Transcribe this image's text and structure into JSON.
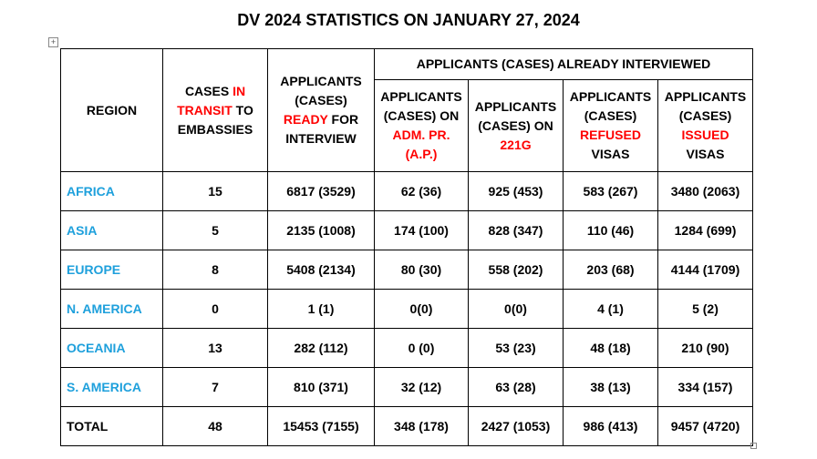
{
  "title": "DV 2024 STATISTICS ON JANUARY 27, 2024",
  "highlight_color": "#ff0000",
  "header": {
    "group": "APPLICANTS (CASES) ALREADY INTERVIEWED",
    "columns": [
      {
        "parts": [
          {
            "text": "REGION"
          }
        ]
      },
      {
        "parts": [
          {
            "text": "CASES"
          },
          {
            "text": "IN TRANSIT",
            "highlight": true
          },
          {
            "text": "TO EMBASSIES"
          }
        ]
      },
      {
        "parts": [
          {
            "text": "APPLICANTS (CASES)"
          },
          {
            "text": "READY",
            "highlight": true
          },
          {
            "text": "FOR INTERVIEW"
          }
        ]
      },
      {
        "parts": [
          {
            "text": "APPLICANTS (CASES) ON"
          },
          {
            "text": "ADM. PR. (A.P.)",
            "highlight": true
          }
        ]
      },
      {
        "parts": [
          {
            "text": "APPLICANTS (CASES) ON"
          },
          {
            "text": "221G",
            "highlight": true
          }
        ]
      },
      {
        "parts": [
          {
            "text": "APPLICANTS (CASES)"
          },
          {
            "text": "REFUSED",
            "highlight": true
          },
          {
            "text": "VISAS"
          }
        ]
      },
      {
        "parts": [
          {
            "text": "APPLICANTS (CASES)"
          },
          {
            "text": "ISSUED",
            "highlight": true
          },
          {
            "text": "VISAS"
          }
        ]
      }
    ]
  },
  "rows": [
    {
      "region": "AFRICA",
      "color": "#1ea0dc",
      "cells": [
        "15",
        "6817 (3529)",
        "62 (36)",
        "925 (453)",
        "583 (267)",
        "3480 (2063)"
      ]
    },
    {
      "region": "ASIA",
      "color": "#1ea0dc",
      "cells": [
        "5",
        "2135 (1008)",
        "174 (100)",
        "828 (347)",
        "110 (46)",
        "1284 (699)"
      ]
    },
    {
      "region": "EUROPE",
      "color": "#1ea0dc",
      "cells": [
        "8",
        "5408 (2134)",
        "80 (30)",
        "558 (202)",
        "203 (68)",
        "4144 (1709)"
      ]
    },
    {
      "region": "N. AMERICA",
      "color": "#1ea0dc",
      "cells": [
        "0",
        "1 (1)",
        "0(0)",
        "0(0)",
        "4 (1)",
        "5 (2)"
      ]
    },
    {
      "region": "OCEANIA",
      "color": "#1ea0dc",
      "cells": [
        "13",
        "282 (112)",
        "0 (0)",
        "53 (23)",
        "48 (18)",
        "210 (90)"
      ]
    },
    {
      "region": "S. AMERICA",
      "color": "#1ea0dc",
      "cells": [
        "7",
        "810 (371)",
        "32 (12)",
        "63 (28)",
        "38 (13)",
        "334 (157)"
      ]
    },
    {
      "region": "TOTAL",
      "color": "#000000",
      "cells": [
        "48",
        "15453 (7155)",
        "348 (178)",
        "2427 (1053)",
        "986 (413)",
        "9457 (4720)"
      ]
    }
  ]
}
